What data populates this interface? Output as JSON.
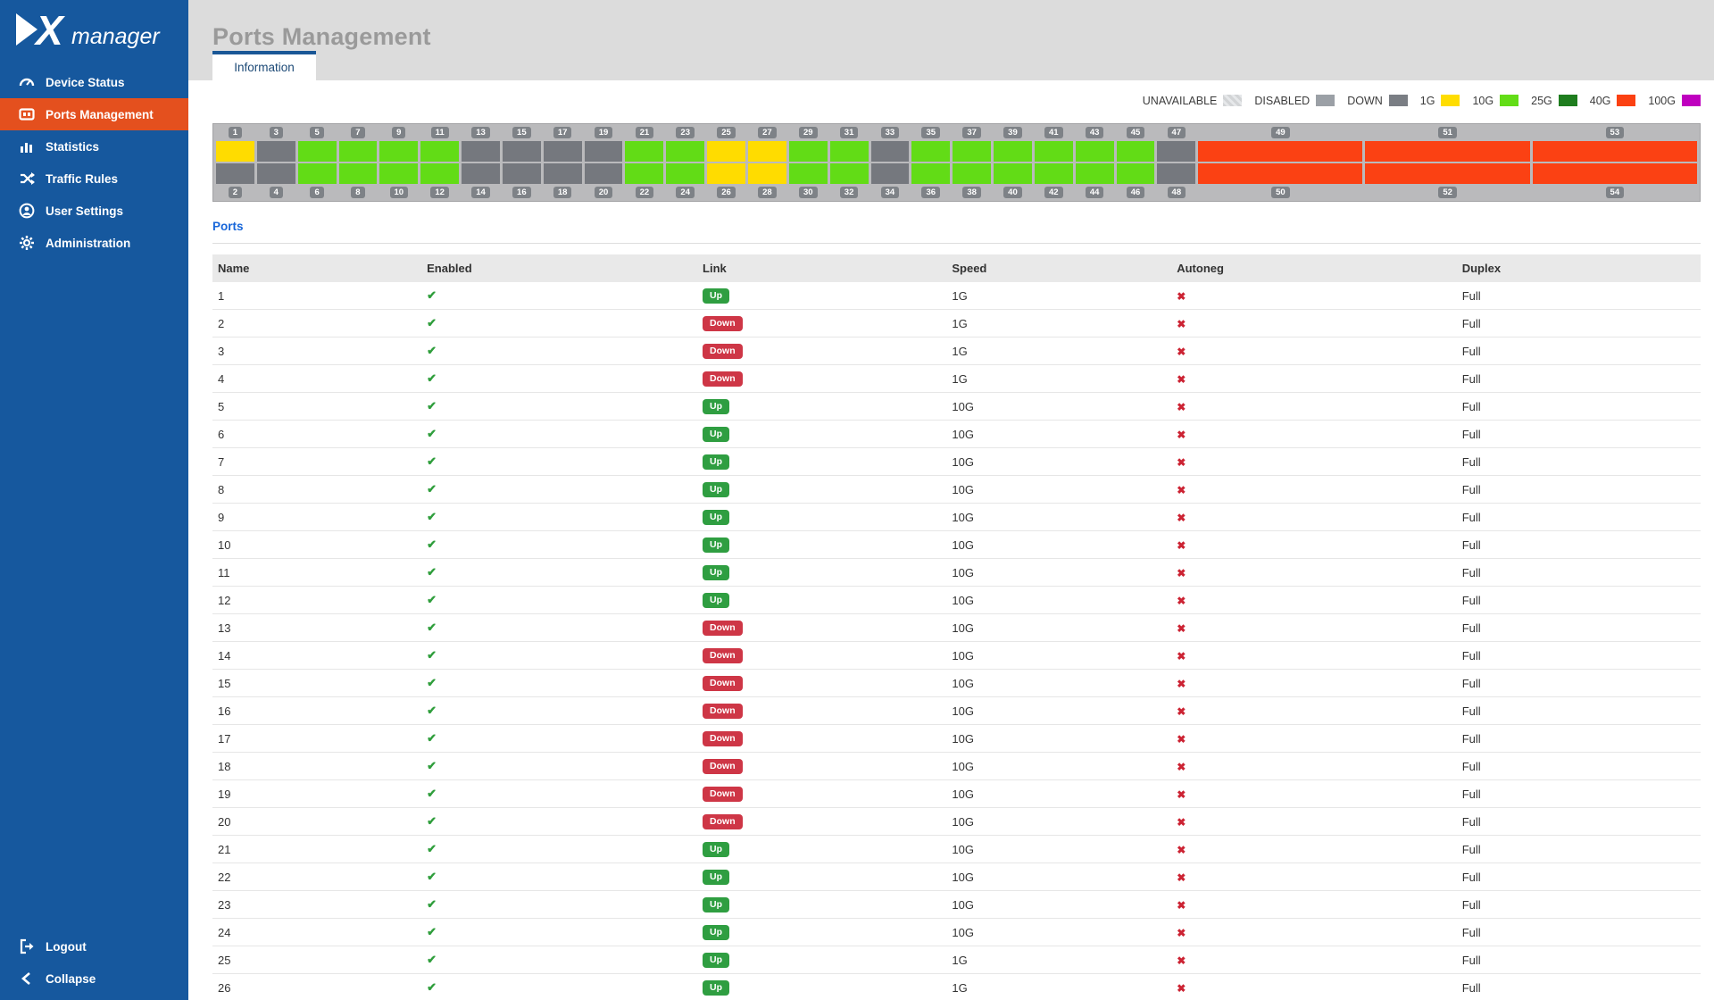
{
  "app": {
    "logo_text": "manager"
  },
  "sidebar": {
    "items": [
      {
        "label": "Device Status",
        "icon": "gauge-icon",
        "active": false
      },
      {
        "label": "Ports Management",
        "icon": "ports-icon",
        "active": true
      },
      {
        "label": "Statistics",
        "icon": "bar-chart-icon",
        "active": false
      },
      {
        "label": "Traffic Rules",
        "icon": "shuffle-icon",
        "active": false
      },
      {
        "label": "User Settings",
        "icon": "user-icon",
        "active": false
      },
      {
        "label": "Administration",
        "icon": "gear-icon",
        "active": false
      }
    ],
    "bottom_items": [
      {
        "label": "Logout",
        "icon": "logout-icon"
      },
      {
        "label": "Collapse",
        "icon": "chevron-left-icon"
      }
    ]
  },
  "header": {
    "title": "Ports Management"
  },
  "tabs": [
    {
      "label": "Information",
      "active": true
    }
  ],
  "legend": [
    {
      "label": "UNAVAILABLE",
      "color": "#dfe1e3",
      "hatched": true
    },
    {
      "label": "DISABLED",
      "color": "#9ba0a6"
    },
    {
      "label": "DOWN",
      "color": "#7a7e84"
    },
    {
      "label": "1G",
      "color": "#ffdd00"
    },
    {
      "label": "10G",
      "color": "#63dd17"
    },
    {
      "label": "25G",
      "color": "#1e7d1e"
    },
    {
      "label": "40G",
      "color": "#fb4112"
    },
    {
      "label": "100G",
      "color": "#bf00bf"
    }
  ],
  "diagram": {
    "wide_from": 49,
    "ports": [
      {
        "num": 1,
        "state": "1G"
      },
      {
        "num": 2,
        "state": "DOWN"
      },
      {
        "num": 3,
        "state": "DOWN"
      },
      {
        "num": 4,
        "state": "DOWN"
      },
      {
        "num": 5,
        "state": "10G"
      },
      {
        "num": 6,
        "state": "10G"
      },
      {
        "num": 7,
        "state": "10G"
      },
      {
        "num": 8,
        "state": "10G"
      },
      {
        "num": 9,
        "state": "10G"
      },
      {
        "num": 10,
        "state": "10G"
      },
      {
        "num": 11,
        "state": "10G"
      },
      {
        "num": 12,
        "state": "10G"
      },
      {
        "num": 13,
        "state": "DOWN"
      },
      {
        "num": 14,
        "state": "DOWN"
      },
      {
        "num": 15,
        "state": "DOWN"
      },
      {
        "num": 16,
        "state": "DOWN"
      },
      {
        "num": 17,
        "state": "DOWN"
      },
      {
        "num": 18,
        "state": "DOWN"
      },
      {
        "num": 19,
        "state": "DOWN"
      },
      {
        "num": 20,
        "state": "DOWN"
      },
      {
        "num": 21,
        "state": "10G"
      },
      {
        "num": 22,
        "state": "10G"
      },
      {
        "num": 23,
        "state": "10G"
      },
      {
        "num": 24,
        "state": "10G"
      },
      {
        "num": 25,
        "state": "1G"
      },
      {
        "num": 26,
        "state": "1G"
      },
      {
        "num": 27,
        "state": "1G"
      },
      {
        "num": 28,
        "state": "1G"
      },
      {
        "num": 29,
        "state": "10G"
      },
      {
        "num": 30,
        "state": "10G"
      },
      {
        "num": 31,
        "state": "10G"
      },
      {
        "num": 32,
        "state": "10G"
      },
      {
        "num": 33,
        "state": "DOWN"
      },
      {
        "num": 34,
        "state": "DOWN"
      },
      {
        "num": 35,
        "state": "10G"
      },
      {
        "num": 36,
        "state": "10G"
      },
      {
        "num": 37,
        "state": "10G"
      },
      {
        "num": 38,
        "state": "10G"
      },
      {
        "num": 39,
        "state": "10G"
      },
      {
        "num": 40,
        "state": "10G"
      },
      {
        "num": 41,
        "state": "10G"
      },
      {
        "num": 42,
        "state": "10G"
      },
      {
        "num": 43,
        "state": "10G"
      },
      {
        "num": 44,
        "state": "10G"
      },
      {
        "num": 45,
        "state": "10G"
      },
      {
        "num": 46,
        "state": "10G"
      },
      {
        "num": 47,
        "state": "DOWN"
      },
      {
        "num": 48,
        "state": "DOWN"
      },
      {
        "num": 49,
        "state": "40G"
      },
      {
        "num": 50,
        "state": "40G"
      },
      {
        "num": 51,
        "state": "40G"
      },
      {
        "num": 52,
        "state": "40G"
      },
      {
        "num": 53,
        "state": "40G"
      },
      {
        "num": 54,
        "state": "40G"
      }
    ]
  },
  "ports_section": {
    "link_label": "Ports"
  },
  "table": {
    "columns": [
      "Name",
      "Enabled",
      "Link",
      "Speed",
      "Autoneg",
      "Duplex"
    ],
    "rows": [
      {
        "name": "1",
        "enabled": true,
        "link": "Up",
        "speed": "1G",
        "autoneg": false,
        "duplex": "Full"
      },
      {
        "name": "2",
        "enabled": true,
        "link": "Down",
        "speed": "1G",
        "autoneg": false,
        "duplex": "Full"
      },
      {
        "name": "3",
        "enabled": true,
        "link": "Down",
        "speed": "1G",
        "autoneg": false,
        "duplex": "Full"
      },
      {
        "name": "4",
        "enabled": true,
        "link": "Down",
        "speed": "1G",
        "autoneg": false,
        "duplex": "Full"
      },
      {
        "name": "5",
        "enabled": true,
        "link": "Up",
        "speed": "10G",
        "autoneg": false,
        "duplex": "Full"
      },
      {
        "name": "6",
        "enabled": true,
        "link": "Up",
        "speed": "10G",
        "autoneg": false,
        "duplex": "Full"
      },
      {
        "name": "7",
        "enabled": true,
        "link": "Up",
        "speed": "10G",
        "autoneg": false,
        "duplex": "Full"
      },
      {
        "name": "8",
        "enabled": true,
        "link": "Up",
        "speed": "10G",
        "autoneg": false,
        "duplex": "Full"
      },
      {
        "name": "9",
        "enabled": true,
        "link": "Up",
        "speed": "10G",
        "autoneg": false,
        "duplex": "Full"
      },
      {
        "name": "10",
        "enabled": true,
        "link": "Up",
        "speed": "10G",
        "autoneg": false,
        "duplex": "Full"
      },
      {
        "name": "11",
        "enabled": true,
        "link": "Up",
        "speed": "10G",
        "autoneg": false,
        "duplex": "Full"
      },
      {
        "name": "12",
        "enabled": true,
        "link": "Up",
        "speed": "10G",
        "autoneg": false,
        "duplex": "Full"
      },
      {
        "name": "13",
        "enabled": true,
        "link": "Down",
        "speed": "10G",
        "autoneg": false,
        "duplex": "Full"
      },
      {
        "name": "14",
        "enabled": true,
        "link": "Down",
        "speed": "10G",
        "autoneg": false,
        "duplex": "Full"
      },
      {
        "name": "15",
        "enabled": true,
        "link": "Down",
        "speed": "10G",
        "autoneg": false,
        "duplex": "Full"
      },
      {
        "name": "16",
        "enabled": true,
        "link": "Down",
        "speed": "10G",
        "autoneg": false,
        "duplex": "Full"
      },
      {
        "name": "17",
        "enabled": true,
        "link": "Down",
        "speed": "10G",
        "autoneg": false,
        "duplex": "Full"
      },
      {
        "name": "18",
        "enabled": true,
        "link": "Down",
        "speed": "10G",
        "autoneg": false,
        "duplex": "Full"
      },
      {
        "name": "19",
        "enabled": true,
        "link": "Down",
        "speed": "10G",
        "autoneg": false,
        "duplex": "Full"
      },
      {
        "name": "20",
        "enabled": true,
        "link": "Down",
        "speed": "10G",
        "autoneg": false,
        "duplex": "Full"
      },
      {
        "name": "21",
        "enabled": true,
        "link": "Up",
        "speed": "10G",
        "autoneg": false,
        "duplex": "Full"
      },
      {
        "name": "22",
        "enabled": true,
        "link": "Up",
        "speed": "10G",
        "autoneg": false,
        "duplex": "Full"
      },
      {
        "name": "23",
        "enabled": true,
        "link": "Up",
        "speed": "10G",
        "autoneg": false,
        "duplex": "Full"
      },
      {
        "name": "24",
        "enabled": true,
        "link": "Up",
        "speed": "10G",
        "autoneg": false,
        "duplex": "Full"
      },
      {
        "name": "25",
        "enabled": true,
        "link": "Up",
        "speed": "1G",
        "autoneg": false,
        "duplex": "Full"
      },
      {
        "name": "26",
        "enabled": true,
        "link": "Up",
        "speed": "1G",
        "autoneg": false,
        "duplex": "Full"
      }
    ]
  }
}
